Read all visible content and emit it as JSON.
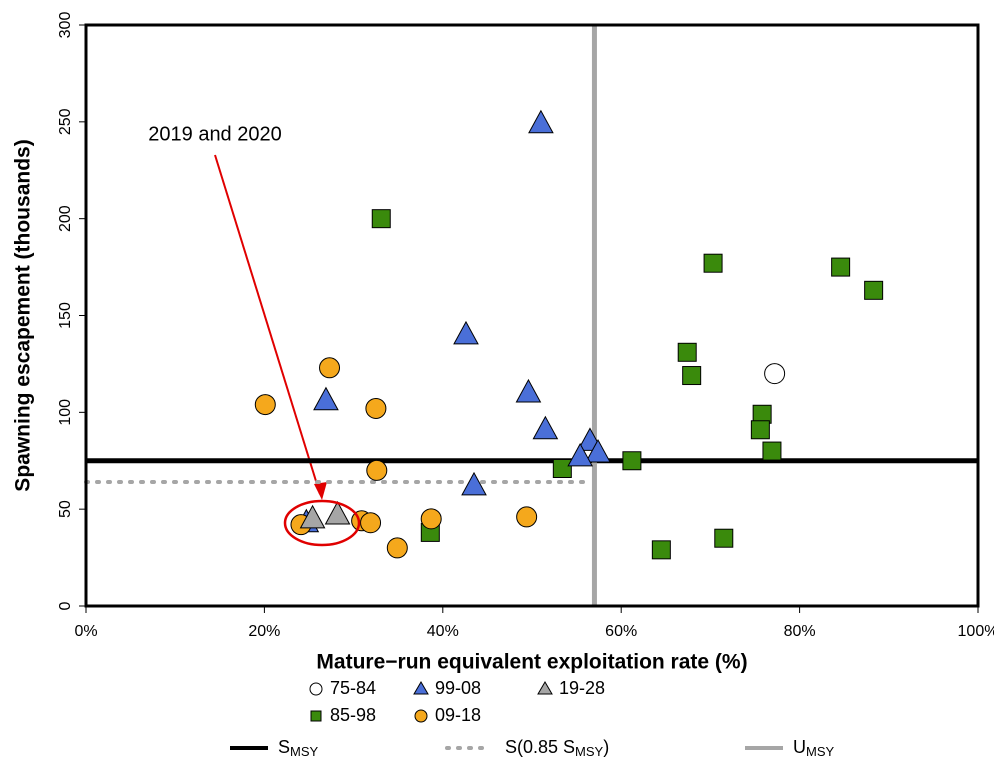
{
  "chart_data": {
    "type": "scatter",
    "x_label": "Mature−run equivalent exploitation rate (%)",
    "y_label": "Spawning escapement (thousands)",
    "xlim": [
      0,
      100
    ],
    "ylim": [
      0,
      300
    ],
    "xticks": [
      {
        "value": 0,
        "label": "0%"
      },
      {
        "value": 20,
        "label": "20%"
      },
      {
        "value": 40,
        "label": "40%"
      },
      {
        "value": 60,
        "label": "60%"
      },
      {
        "value": 80,
        "label": "80%"
      },
      {
        "value": 100,
        "label": "100%"
      }
    ],
    "yticks": [
      0,
      50,
      100,
      150,
      200,
      250,
      300
    ],
    "annotation": "2019 and 2020",
    "series": [
      {
        "name": "75-84",
        "marker": "circle",
        "color": "#ffffff",
        "x": [
          77.2
        ],
        "values": [
          120
        ]
      },
      {
        "name": "85-98",
        "marker": "square",
        "color": "#3a8a0c",
        "x": [
          33.1,
          70.3,
          84.6,
          88.3,
          67.4,
          67.9,
          75.8,
          75.6,
          76.9,
          61.2,
          53.4,
          38.6,
          64.5,
          71.5
        ],
        "values": [
          200,
          177,
          175,
          163,
          131,
          119,
          99,
          91,
          80,
          75,
          71,
          38,
          29,
          35
        ]
      },
      {
        "name": "99-08",
        "marker": "triangle",
        "color": "#4a6fd8",
        "x": [
          51.0,
          42.6,
          49.6,
          26.9,
          51.5,
          56.5,
          57.4,
          55.4,
          43.5,
          24.7
        ],
        "values": [
          249,
          140,
          110,
          106,
          91,
          85,
          79,
          77,
          62,
          43
        ]
      },
      {
        "name": "09-18",
        "marker": "circle",
        "color": "#f5a81c",
        "x": [
          20.1,
          27.3,
          32.5,
          32.6,
          24.1,
          30.9,
          31.9,
          34.9,
          38.7,
          49.4
        ],
        "values": [
          104,
          123,
          102,
          70,
          42,
          44,
          43,
          30,
          45,
          46
        ]
      },
      {
        "name": "19-28",
        "marker": "triangle",
        "color": "#a6a6a6",
        "x": [
          25.4,
          28.2
        ],
        "values": [
          45,
          47
        ]
      }
    ],
    "reference_lines": [
      {
        "label_parts": [
          "S",
          "MSY"
        ],
        "axis": "y",
        "value": 75,
        "color": "#000000",
        "style": "solid"
      },
      {
        "label_parts": [
          "S(0.85 S",
          "MSY",
          ")"
        ],
        "axis": "y",
        "value": 64,
        "color": "#a6a6a6",
        "style": "dotted"
      },
      {
        "label_parts": [
          "U",
          "MSY"
        ],
        "axis": "x",
        "value": 57,
        "color": "#a6a6a6",
        "style": "solid"
      }
    ]
  }
}
